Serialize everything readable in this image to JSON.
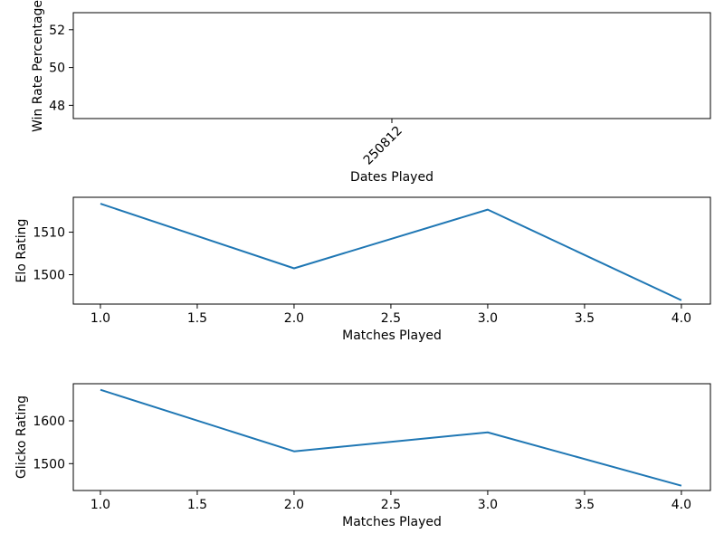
{
  "figure": {
    "background": "#ffffff",
    "text_color": "#000000",
    "line_color": "#1f77b4"
  },
  "chart_data": [
    {
      "type": "line",
      "title": "",
      "xlabel": "Dates Played",
      "ylabel": "Win Rate Percentage",
      "xlim": [
        -0.05,
        0.05
      ],
      "ylim": [
        47.3,
        52.9
      ],
      "x_ticks": [
        0
      ],
      "x_tick_labels": [
        "250812"
      ],
      "x_tick_rotation": 45,
      "y_ticks": [
        48,
        50,
        52
      ],
      "y_tick_labels": [
        "48",
        "50",
        "52"
      ],
      "grid": false,
      "legend": "none",
      "series": []
    },
    {
      "type": "line",
      "title": "",
      "xlabel": "Matches Played",
      "ylabel": "Elo Rating",
      "xlim": [
        0.86,
        4.15
      ],
      "ylim": [
        1493.1,
        1518.2
      ],
      "x_ticks": [
        1.0,
        1.5,
        2.0,
        2.5,
        3.0,
        3.5,
        4.0
      ],
      "x_tick_labels": [
        "1.0",
        "1.5",
        "2.0",
        "2.5",
        "3.0",
        "3.5",
        "4.0"
      ],
      "x_tick_rotation": 0,
      "y_ticks": [
        1500,
        1510
      ],
      "y_tick_labels": [
        "1500",
        "1510"
      ],
      "grid": false,
      "legend": "none",
      "series": [
        {
          "name": "elo-rating",
          "x": [
            1,
            2,
            3,
            4
          ],
          "values": [
            1516.7,
            1501.5,
            1515.3,
            1494.0
          ]
        }
      ]
    },
    {
      "type": "line",
      "title": "",
      "xlabel": "Matches Played",
      "ylabel": "Glicko Rating",
      "xlim": [
        0.86,
        4.15
      ],
      "ylim": [
        1437.2,
        1686.7
      ],
      "x_ticks": [
        1.0,
        1.5,
        2.0,
        2.5,
        3.0,
        3.5,
        4.0
      ],
      "x_tick_labels": [
        "1.0",
        "1.5",
        "2.0",
        "2.5",
        "3.0",
        "3.5",
        "4.0"
      ],
      "x_tick_rotation": 0,
      "y_ticks": [
        1500,
        1600
      ],
      "y_tick_labels": [
        "1500",
        "1600"
      ],
      "grid": false,
      "legend": "none",
      "series": [
        {
          "name": "glicko-rating",
          "x": [
            1,
            2,
            3,
            4
          ],
          "values": [
            1672.5,
            1528.7,
            1573.1,
            1448.4
          ]
        }
      ]
    }
  ]
}
